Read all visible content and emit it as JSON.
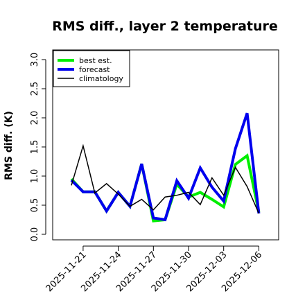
{
  "chart_data": {
    "type": "line",
    "title": "RMS diff., layer 2 temperature",
    "ylabel": "RMS diff. (K)",
    "xlabel": "",
    "ylim": [
      -0.05,
      3.15
    ],
    "yticks": [
      "0.0",
      "0.5",
      "1.0",
      "1.5",
      "2.0",
      "2.5",
      "3.0"
    ],
    "xticks": [
      {
        "label": "2025-11-21",
        "color": "#000000"
      },
      {
        "label": "2025-11-24",
        "color": "#000000"
      },
      {
        "label": "2025-11-27",
        "color": "#2a8a2a"
      },
      {
        "label": "2025-11-30",
        "color": "#000000"
      },
      {
        "label": "2025-12-03",
        "color": "#000000"
      },
      {
        "label": "2025-12-06",
        "color": "#000000"
      }
    ],
    "x": [
      "2025-11-20",
      "2025-11-21",
      "2025-11-22",
      "2025-11-23",
      "2025-11-24",
      "2025-11-25",
      "2025-11-26",
      "2025-11-27",
      "2025-11-28",
      "2025-11-29",
      "2025-11-30",
      "2025-12-01",
      "2025-12-02",
      "2025-12-03",
      "2025-12-04",
      "2025-12-05",
      "2025-12-06"
    ],
    "grid": false,
    "legend_position": "top-left",
    "series": [
      {
        "name": "best est.",
        "color": "#00ee00",
        "width": 4,
        "values": [
          0.95,
          0.73,
          0.73,
          0.4,
          0.72,
          0.48,
          1.21,
          0.23,
          0.25,
          0.86,
          0.64,
          0.72,
          0.6,
          0.47,
          1.2,
          1.35,
          0.38
        ]
      },
      {
        "name": "forecast",
        "color": "#0000ee",
        "width": 4,
        "values": [
          0.93,
          0.73,
          0.73,
          0.4,
          0.72,
          0.48,
          1.21,
          0.28,
          0.25,
          0.92,
          0.62,
          1.14,
          0.81,
          0.57,
          1.47,
          2.08,
          0.36
        ]
      },
      {
        "name": "climatology",
        "color": "#000000",
        "width": 1.5,
        "values": [
          0.84,
          1.52,
          0.71,
          0.87,
          0.69,
          0.48,
          0.6,
          0.42,
          0.64,
          0.67,
          0.72,
          0.51,
          0.97,
          0.67,
          1.15,
          0.82,
          0.36
        ]
      }
    ]
  }
}
